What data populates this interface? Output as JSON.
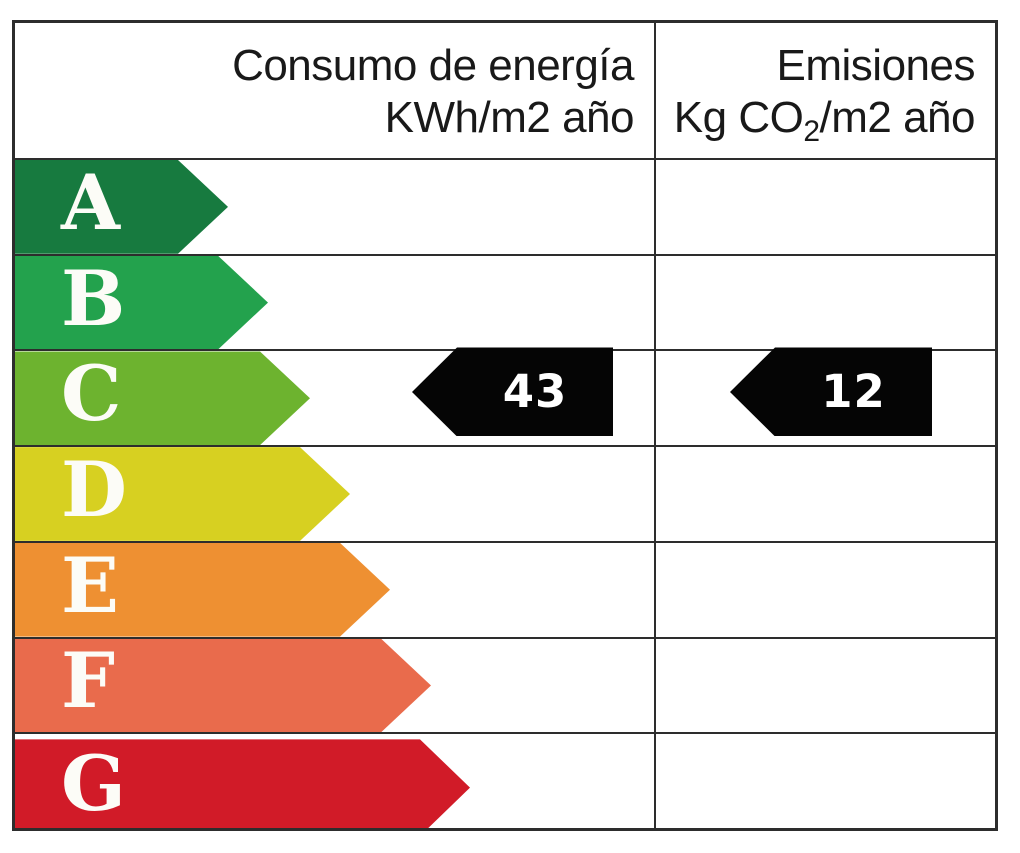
{
  "chart_data": {
    "type": "table",
    "columns": [
      "Consumo de energía KWh/m2 año",
      "Emisiones Kg CO2/m2 año"
    ],
    "rating_scale": [
      "A",
      "B",
      "C",
      "D",
      "E",
      "F",
      "G"
    ],
    "rating": "C",
    "values": {
      "consumo_kwh_m2_ano": 43,
      "emisiones_kg_co2_m2_ano": 12
    }
  },
  "header": {
    "consumption_line1": "Consumo de energía",
    "consumption_line2": "KWh/m2 año",
    "emissions_line1": "Emisiones",
    "emissions_line2_prefix": "Kg CO",
    "emissions_line2_sub": "2",
    "emissions_line2_suffix": "/m2 año"
  },
  "ratings": [
    {
      "letter": "A",
      "color": "#177a3f",
      "arrow_width": 213
    },
    {
      "letter": "B",
      "color": "#23a24d",
      "arrow_width": 253
    },
    {
      "letter": "C",
      "color": "#6db32f",
      "arrow_width": 295
    },
    {
      "letter": "D",
      "color": "#d7d021",
      "arrow_width": 335
    },
    {
      "letter": "E",
      "color": "#ee9032",
      "arrow_width": 375
    },
    {
      "letter": "F",
      "color": "#e96b4c",
      "arrow_width": 416
    },
    {
      "letter": "G",
      "color": "#d11b28",
      "arrow_width": 455
    }
  ],
  "values": {
    "rating_letter": "C",
    "consumption": "43",
    "emissions": "12",
    "marker_color": "#050505"
  }
}
